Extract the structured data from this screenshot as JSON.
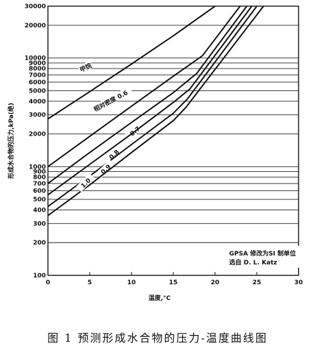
{
  "caption": "图 1 预测形成水合物的压力-温度曲线图",
  "chart_data": {
    "type": "line",
    "title": "",
    "xlabel": "温度,°C",
    "ylabel": "形成水合物的压力,kPa(绝)",
    "x_scale": "linear",
    "y_scale": "log",
    "xlim": [
      0,
      30
    ],
    "ylim": [
      100,
      30000
    ],
    "x_ticks": [
      0,
      5,
      10,
      15,
      20,
      25,
      30
    ],
    "x_tick_labels": [
      "0",
      "5",
      "10",
      "15",
      "20",
      "25",
      "30"
    ],
    "y_ticks": [
      100,
      200,
      300,
      400,
      500,
      600,
      700,
      800,
      900,
      1000,
      2000,
      3000,
      4000,
      5000,
      6000,
      7000,
      8000,
      9000,
      10000,
      20000,
      30000
    ],
    "y_tick_labels": [
      "100",
      "200",
      "300",
      "400",
      "500",
      "600",
      "700",
      "800",
      "900",
      "1000",
      "2000",
      "3000",
      "4000",
      "5000",
      "6000",
      "7000",
      "8000",
      "9000",
      "10000",
      "20000",
      "30000"
    ],
    "grid": "horizontal",
    "annotation": [
      "GPSA 修改为SI 制单位",
      "选自 D. L. Katz"
    ],
    "series": [
      {
        "name": "甲烷",
        "label": "甲烷",
        "label_at": [
          4.5,
          8200
        ],
        "label_angle": -26,
        "points": [
          [
            0,
            2750
          ],
          [
            5,
            4900
          ],
          [
            10,
            8800
          ],
          [
            15,
            16000
          ],
          [
            20,
            30000
          ]
        ]
      },
      {
        "name": "相对密度 0.6",
        "label": "相对密度 0.6",
        "label_at": [
          7.5,
          4050
        ],
        "label_angle": -28,
        "points": [
          [
            0,
            1000
          ],
          [
            5,
            1900
          ],
          [
            10,
            3600
          ],
          [
            15,
            6800
          ],
          [
            18.5,
            10500
          ],
          [
            23,
            30000
          ]
        ]
      },
      {
        "name": "0.7",
        "label": "0.7",
        "label_at": [
          10.4,
          2130
        ],
        "label_angle": -40,
        "points": [
          [
            0,
            700
          ],
          [
            5,
            1350
          ],
          [
            10,
            2550
          ],
          [
            15,
            4800
          ],
          [
            17.8,
            7200
          ],
          [
            23.8,
            30000
          ]
        ]
      },
      {
        "name": "0.8",
        "label": "0.8",
        "label_at": [
          7.9,
          1300
        ],
        "label_angle": -42,
        "points": [
          [
            0,
            550
          ],
          [
            5,
            1050
          ],
          [
            10,
            2000
          ],
          [
            15,
            3900
          ],
          [
            17,
            5200
          ],
          [
            24.4,
            30000
          ]
        ]
      },
      {
        "name": "0.9",
        "label": "0.9",
        "label_at": [
          6.9,
          950
        ],
        "label_angle": -44,
        "points": [
          [
            0,
            430
          ],
          [
            5,
            820
          ],
          [
            10,
            1600
          ],
          [
            15,
            3100
          ],
          [
            16.7,
            4200
          ],
          [
            25,
            30000
          ]
        ]
      },
      {
        "name": "1.0",
        "label": "1.0",
        "label_at": [
          4.5,
          710
        ],
        "label_angle": -45,
        "points": [
          [
            0,
            355
          ],
          [
            5,
            680
          ],
          [
            10,
            1350
          ],
          [
            15,
            2650
          ],
          [
            16.5,
            3500
          ],
          [
            25.8,
            30000
          ]
        ]
      }
    ]
  }
}
